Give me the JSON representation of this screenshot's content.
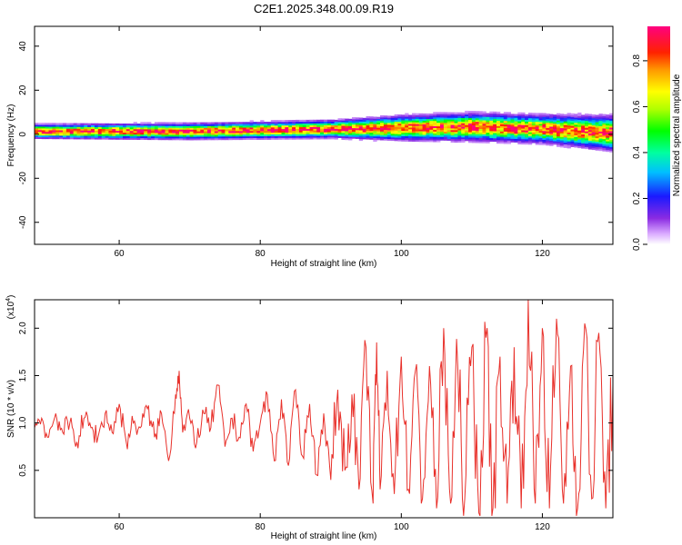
{
  "title": "C2E1.2025.348.00.09.R19",
  "chart_data": [
    {
      "type": "heatmap",
      "name": "spectrogram",
      "xlabel": "Height of straight line (km)",
      "ylabel": "Frequency (Hz)",
      "xlim": [
        48,
        130
      ],
      "ylim": [
        -50,
        49
      ],
      "x_ticks": [
        60,
        80,
        100,
        120
      ],
      "y_ticks": [
        40,
        20,
        0,
        -20,
        -40
      ],
      "y_tick_labels": [
        "40",
        "20",
        "0",
        "-20",
        "-40"
      ],
      "band_center_hz": [
        [
          48,
          1
        ],
        [
          70,
          1
        ],
        [
          90,
          2
        ],
        [
          100,
          2.5
        ],
        [
          110,
          3
        ],
        [
          120,
          2
        ],
        [
          130,
          0
        ]
      ],
      "band_halfwidth_hz": [
        [
          48,
          2
        ],
        [
          90,
          2.5
        ],
        [
          100,
          3.5
        ],
        [
          110,
          4
        ],
        [
          120,
          4
        ],
        [
          130,
          5
        ]
      ]
    },
    {
      "type": "colorbar",
      "name": "normalized-amplitude-scale",
      "label": "Normalized spectral amplitude",
      "range": [
        0,
        0.95
      ],
      "ticks": [
        0.0,
        0.2,
        0.4,
        0.6,
        0.8
      ],
      "tick_labels": [
        "0.0",
        "0.2",
        "0.4",
        "0.6",
        "0.8"
      ]
    },
    {
      "type": "line",
      "name": "snr",
      "xlabel": "Height of straight line (km)",
      "ylabel": "SNR (10 * v/v)",
      "multiplier_label": "(x10",
      "multiplier_exp": "4",
      "multiplier_close": ")",
      "xlim": [
        48,
        130
      ],
      "ylim": [
        0.0,
        2.3
      ],
      "x_ticks": [
        60,
        80,
        100,
        120
      ],
      "y_ticks": [
        0.5,
        1.0,
        1.5,
        2.0
      ],
      "y_tick_labels": [
        "0.5",
        "1.0",
        "1.5",
        "2.0"
      ],
      "color": "#e8302a",
      "series": [
        {
          "name": "SNR",
          "x": [
            48,
            49,
            50,
            51,
            52,
            53,
            54,
            55,
            56,
            57,
            58,
            59,
            60,
            61,
            62,
            63,
            64,
            65,
            66,
            67,
            68,
            68.5,
            69,
            70,
            71,
            72,
            73,
            74,
            75,
            76,
            77,
            78,
            79,
            80,
            81,
            82,
            83,
            84,
            85,
            86,
            87,
            88,
            89,
            90,
            91,
            92,
            93,
            94,
            95,
            96,
            96.5,
            97,
            98,
            99,
            100,
            101,
            102,
            103,
            104,
            105,
            106,
            107,
            108,
            109,
            110,
            111,
            112,
            113,
            114,
            115,
            116,
            117,
            118,
            119,
            120,
            121,
            122,
            123,
            124,
            125,
            126,
            127,
            128,
            129,
            130
          ],
          "y": [
            0.95,
            1.05,
            0.85,
            1.1,
            0.9,
            1.0,
            0.8,
            1.05,
            0.95,
            0.85,
            1.1,
            0.9,
            1.2,
            0.8,
            1.0,
            0.95,
            1.15,
            0.85,
            1.1,
            0.6,
            1.3,
            1.55,
            0.9,
            1.05,
            0.8,
            1.1,
            0.95,
            1.4,
            0.75,
            1.05,
            0.85,
            1.2,
            0.7,
            1.0,
            1.3,
            0.6,
            1.25,
            0.55,
            1.35,
            0.65,
            1.2,
            0.45,
            1.1,
            0.4,
            1.35,
            0.5,
            1.3,
            0.3,
            1.8,
            0.15,
            1.85,
            0.3,
            1.55,
            0.25,
            1.7,
            0.3,
            1.55,
            0.2,
            1.6,
            0.1,
            2.0,
            0.15,
            1.6,
            0.2,
            1.8,
            0.05,
            1.9,
            0.1,
            1.7,
            0.15,
            1.8,
            0.1,
            2.3,
            0.15,
            2.0,
            0.1,
            2.1,
            0.15,
            1.6,
            0.1,
            2.05,
            0.2,
            1.95,
            0.1,
            1.4
          ]
        }
      ]
    }
  ]
}
